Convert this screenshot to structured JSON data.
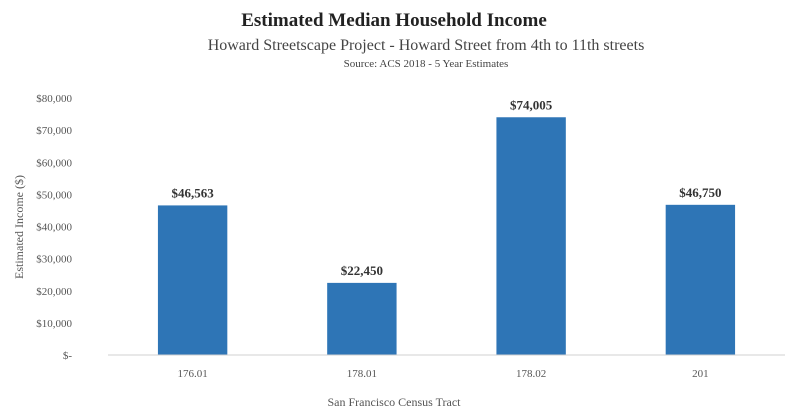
{
  "chart_data": {
    "type": "bar",
    "title": "Estimated Median Household Income",
    "subtitle": "Howard Streetscape  Project - Howard Street from 4th to 11th streets",
    "source": "Source: ACS 2018 - 5 Year Estimates",
    "xlabel": "San Francisco Census Tract",
    "ylabel": "Estimated Income ($)",
    "categories": [
      "176.01",
      "178.01",
      "178.02",
      "201"
    ],
    "values": [
      46563,
      22450,
      74005,
      46750
    ],
    "data_labels": [
      "$46,563",
      "$22,450",
      "$74,005",
      "$46,750"
    ],
    "ylim": [
      0,
      80000
    ],
    "y_ticks": [
      0,
      10000,
      20000,
      30000,
      40000,
      50000,
      60000,
      70000,
      80000
    ],
    "y_tick_labels": [
      "$-",
      "$10,000",
      "$20,000",
      "$30,000",
      "$40,000",
      "$50,000",
      "$60,000",
      "$70,000",
      "$80,000"
    ],
    "grid": false,
    "bar_color": "#2e75b6"
  }
}
